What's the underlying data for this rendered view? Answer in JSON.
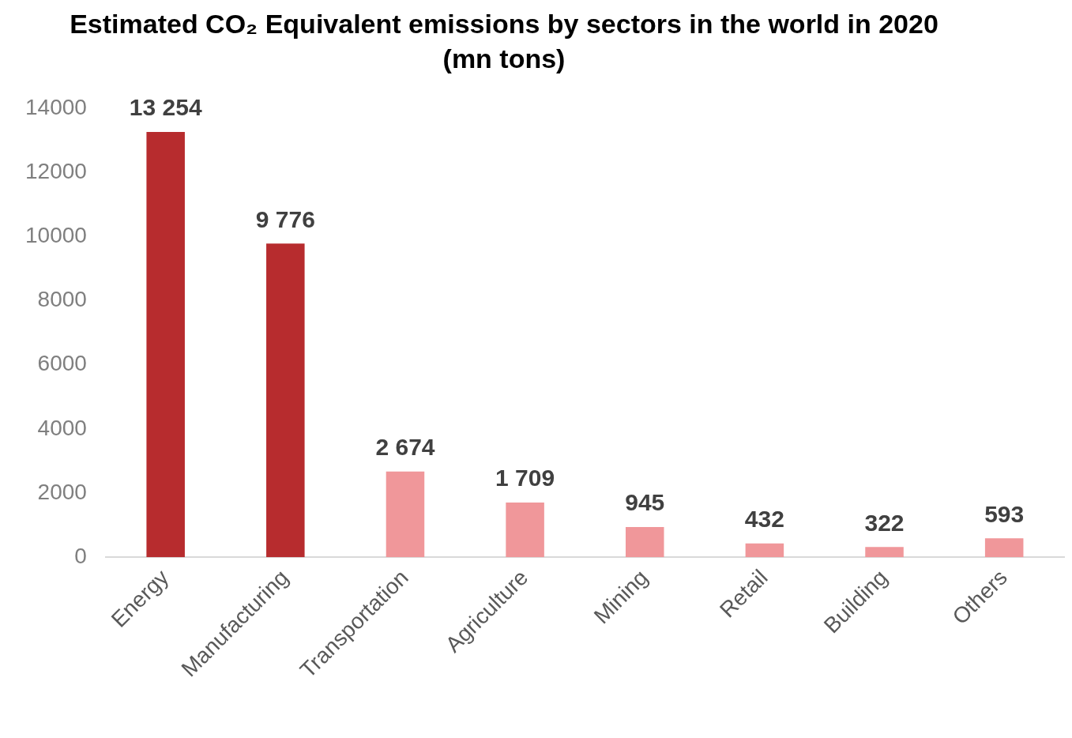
{
  "chart_data": {
    "type": "bar",
    "title": "Estimated CO₂  Equivalent emissions by sectors in the world in 2020",
    "subtitle": "(mn tons)",
    "categories": [
      "Energy",
      "Manufacturing",
      "Transportation",
      "Agriculture",
      "Mining",
      "Retail",
      "Building",
      "Others"
    ],
    "values": [
      13254,
      9776,
      2674,
      1709,
      945,
      432,
      322,
      593
    ],
    "value_labels": [
      "13 254",
      "9 776",
      "2 674",
      "1 709",
      "945",
      "432",
      "322",
      "593"
    ],
    "colors": [
      "#b72c2e",
      "#b72c2e",
      "#f0979a",
      "#f0979a",
      "#f0979a",
      "#f0979a",
      "#f0979a",
      "#f0979a"
    ],
    "ylim": [
      0,
      14000
    ],
    "yticks": [
      0,
      2000,
      4000,
      6000,
      8000,
      10000,
      12000,
      14000
    ],
    "grid": false,
    "legend": false
  }
}
